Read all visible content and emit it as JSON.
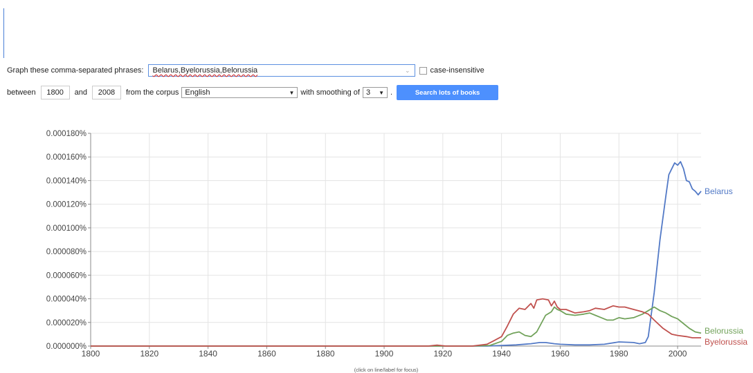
{
  "form": {
    "phrases_label": "Graph these comma-separated phrases:",
    "phrases_value": "Belarus,Byelorussia,Belorussia",
    "case_label": "case-insensitive",
    "between_label": "between",
    "start_year": "1800",
    "and_label": "and",
    "end_year": "2008",
    "corpus_label": "from the corpus",
    "corpus_value": "English",
    "smoothing_label": "with smoothing of",
    "smoothing_value": "3",
    "period": ".",
    "search_button": "Search lots of books"
  },
  "footnote": "(click on line/label for focus)",
  "colors": {
    "Belarus": "#5279c6",
    "Belorussia": "#71a25a",
    "Byelorussia": "#c0504d",
    "button": "#4d90fe"
  },
  "chart_data": {
    "type": "line",
    "xlim": [
      1800,
      2008
    ],
    "ylim": [
      0,
      0.00018
    ],
    "y_ticks": [
      "0.000000%",
      "0.000020%",
      "0.000040%",
      "0.000060%",
      "0.000080%",
      "0.000100%",
      "0.000120%",
      "0.000140%",
      "0.000160%",
      "0.000180%"
    ],
    "x_ticks": [
      "1800",
      "1820",
      "1840",
      "1860",
      "1880",
      "1900",
      "1920",
      "1940",
      "1960",
      "1980",
      "2000"
    ],
    "grid": true,
    "legend": "right-end labels",
    "series": [
      {
        "name": "Belarus",
        "x": [
          1800,
          1935,
          1940,
          1945,
          1950,
          1953,
          1955,
          1958,
          1960,
          1965,
          1970,
          1975,
          1980,
          1985,
          1987,
          1989,
          1990,
          1992,
          1994,
          1996,
          1997,
          1998,
          1999,
          2000,
          2001,
          2002,
          2003,
          2004,
          2005,
          2006,
          2007,
          2008
        ],
        "y": [
          0,
          0,
          5e-07,
          1e-06,
          2e-06,
          3e-06,
          3e-06,
          2e-06,
          1.5e-06,
          1e-06,
          1e-06,
          1.5e-06,
          3.5e-06,
          3e-06,
          2e-06,
          3e-06,
          8e-06,
          4.5e-05,
          9e-05,
          0.000127,
          0.000145,
          0.00015,
          0.000155,
          0.000153,
          0.000156,
          0.00015,
          0.00014,
          0.000139,
          0.000133,
          0.000131,
          0.000128,
          0.000131
        ]
      },
      {
        "name": "Belorussia",
        "x": [
          1800,
          1930,
          1936,
          1940,
          1942,
          1944,
          1946,
          1948,
          1950,
          1952,
          1955,
          1957,
          1958,
          1959,
          1960,
          1962,
          1965,
          1968,
          1970,
          1972,
          1974,
          1976,
          1978,
          1980,
          1982,
          1985,
          1988,
          1990,
          1992,
          1994,
          1996,
          1998,
          2000,
          2002,
          2004,
          2006,
          2008
        ],
        "y": [
          0,
          0,
          5e-07,
          4e-06,
          9e-06,
          1.1e-05,
          1.2e-05,
          9e-06,
          8e-06,
          1.2e-05,
          2.6e-05,
          2.9e-05,
          3.3e-05,
          3.1e-05,
          3e-05,
          2.7e-05,
          2.6e-05,
          2.7e-05,
          2.8e-05,
          2.6e-05,
          2.4e-05,
          2.2e-05,
          2.2e-05,
          2.4e-05,
          2.3e-05,
          2.4e-05,
          2.7e-05,
          3e-05,
          3.3e-05,
          3e-05,
          2.8e-05,
          2.5e-05,
          2.3e-05,
          1.9e-05,
          1.5e-05,
          1.2e-05,
          1.1e-05
        ]
      },
      {
        "name": "Byelorussia",
        "x": [
          1800,
          1915,
          1918,
          1921,
          1930,
          1935,
          1937,
          1940,
          1942,
          1944,
          1946,
          1948,
          1950,
          1951,
          1952,
          1954,
          1956,
          1957,
          1958,
          1959,
          1960,
          1962,
          1965,
          1968,
          1970,
          1972,
          1975,
          1978,
          1980,
          1982,
          1985,
          1988,
          1990,
          1992,
          1995,
          1998,
          2000,
          2003,
          2005,
          2008
        ],
        "y": [
          0,
          0,
          8e-07,
          0,
          0,
          1.5e-06,
          4e-06,
          8e-06,
          1.7e-05,
          2.7e-05,
          3.2e-05,
          3.1e-05,
          3.6e-05,
          3.2e-05,
          3.9e-05,
          4e-05,
          3.9e-05,
          3.4e-05,
          3.8e-05,
          3.3e-05,
          3.1e-05,
          3.1e-05,
          2.8e-05,
          2.9e-05,
          3e-05,
          3.2e-05,
          3.1e-05,
          3.4e-05,
          3.3e-05,
          3.3e-05,
          3.1e-05,
          2.9e-05,
          2.7e-05,
          2.2e-05,
          1.5e-05,
          1e-05,
          9e-06,
          8e-06,
          7e-06,
          7e-06
        ]
      }
    ]
  }
}
